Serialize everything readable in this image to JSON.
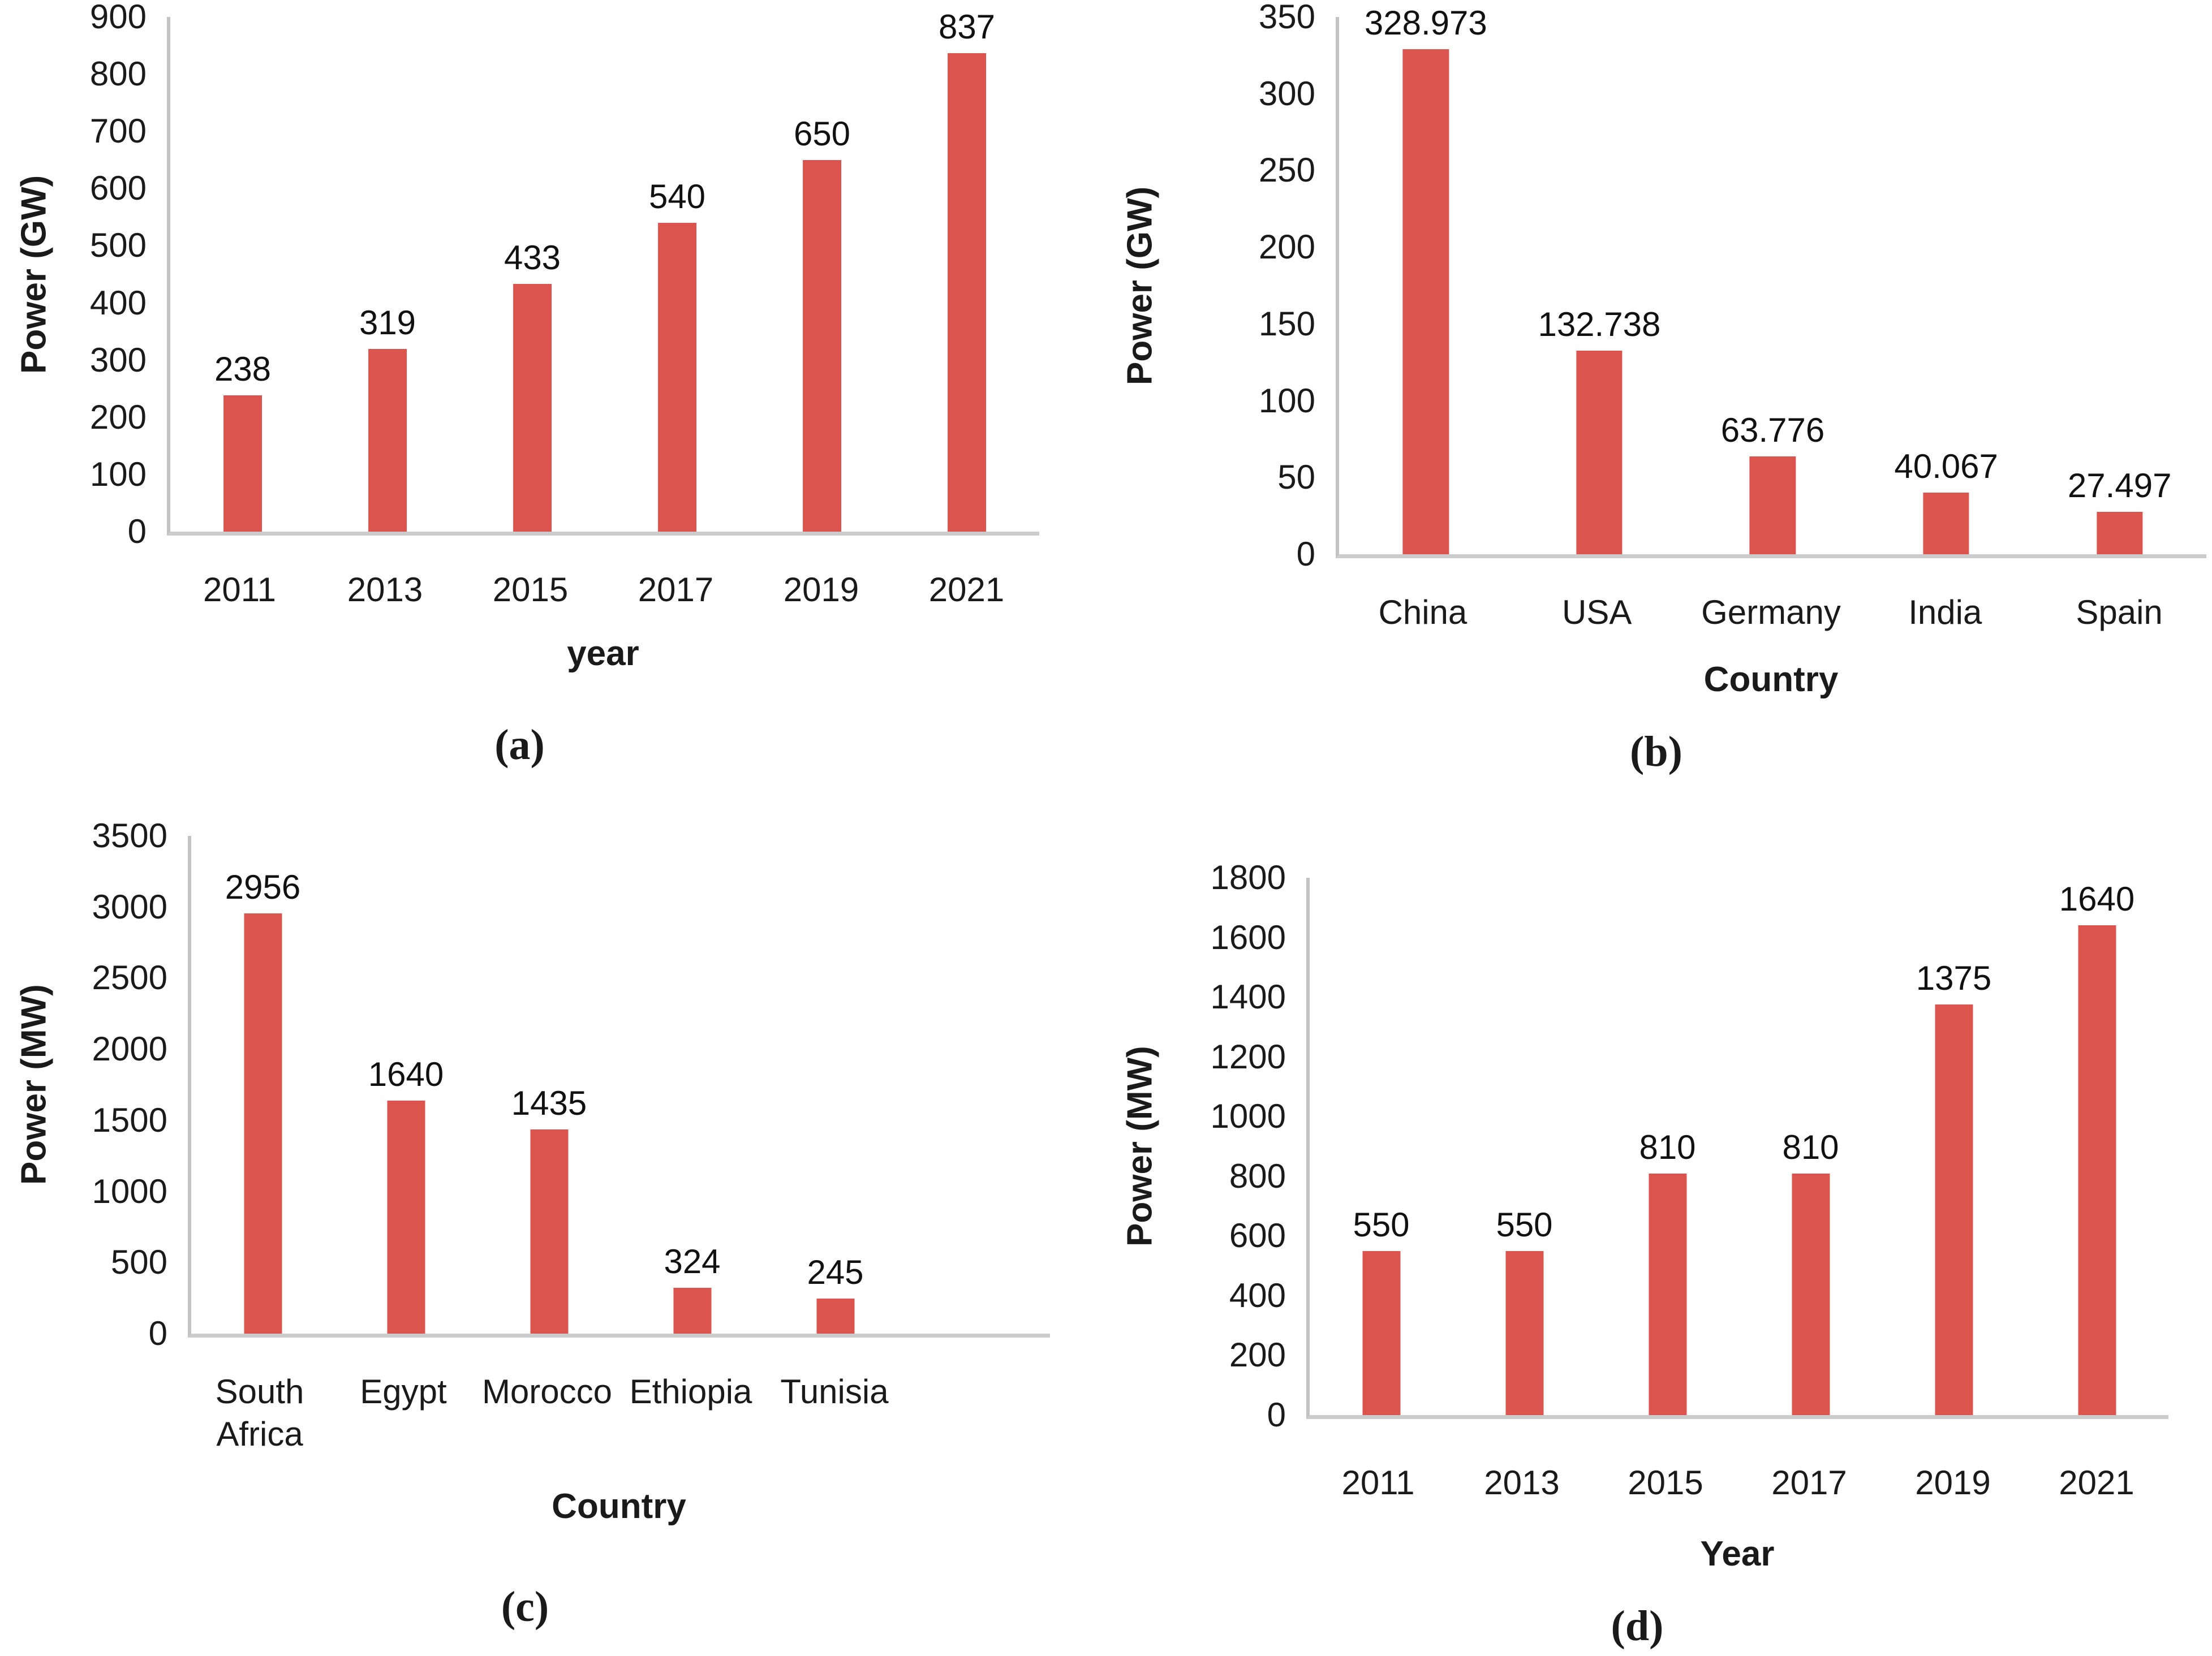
{
  "colors": {
    "bar": "#DB544E",
    "axis_line": "#c3c3c3",
    "text": "#1a1a1a"
  },
  "chart_data": [
    {
      "type": "bar",
      "caption": "(a)",
      "ylabel": "Power (GW)",
      "xlabel": "year",
      "ylim": [
        0,
        900
      ],
      "ytick_step": 100,
      "grid": false,
      "legend": null,
      "categories": [
        "2011",
        "2013",
        "2015",
        "2017",
        "2019",
        "2021"
      ],
      "values": [
        238,
        319,
        433,
        540,
        650,
        837
      ],
      "value_labels": [
        "238",
        "319",
        "433",
        "540",
        "650",
        "837"
      ],
      "extra_right_slots": 0
    },
    {
      "type": "bar",
      "caption": "(b)",
      "ylabel": "Power (GW)",
      "xlabel": "Country",
      "ylim": [
        0,
        350
      ],
      "ytick_step": 50,
      "grid": false,
      "legend": null,
      "categories": [
        "China",
        "USA",
        "Germany",
        "India",
        "Spain"
      ],
      "values": [
        328.973,
        132.738,
        63.776,
        40.067,
        27.497
      ],
      "value_labels": [
        "328.973",
        "132.738",
        "63.776",
        "40.067",
        "27.497"
      ],
      "extra_right_slots": 0
    },
    {
      "type": "bar",
      "caption": "(c)",
      "ylabel": "Power (MW)",
      "xlabel": "Country",
      "ylim": [
        0,
        3500
      ],
      "ytick_step": 500,
      "grid": false,
      "legend": null,
      "categories": [
        "South Africa",
        "Egypt",
        "Morocco",
        "Ethiopia",
        "Tunisia"
      ],
      "values": [
        2956,
        1640,
        1435,
        324,
        245
      ],
      "value_labels": [
        "2956",
        "1640",
        "1435",
        "324",
        "245"
      ],
      "extra_right_slots": 1
    },
    {
      "type": "bar",
      "caption": "(d)",
      "ylabel": "Power (MW)",
      "xlabel": "Year",
      "ylim": [
        0,
        1800
      ],
      "ytick_step": 200,
      "grid": false,
      "legend": null,
      "categories": [
        "2011",
        "2013",
        "2015",
        "2017",
        "2019",
        "2021"
      ],
      "values": [
        550,
        550,
        810,
        810,
        1375,
        1640
      ],
      "value_labels": [
        "550",
        "550",
        "810",
        "810",
        "1375",
        "1640"
      ],
      "extra_right_slots": 0
    }
  ]
}
